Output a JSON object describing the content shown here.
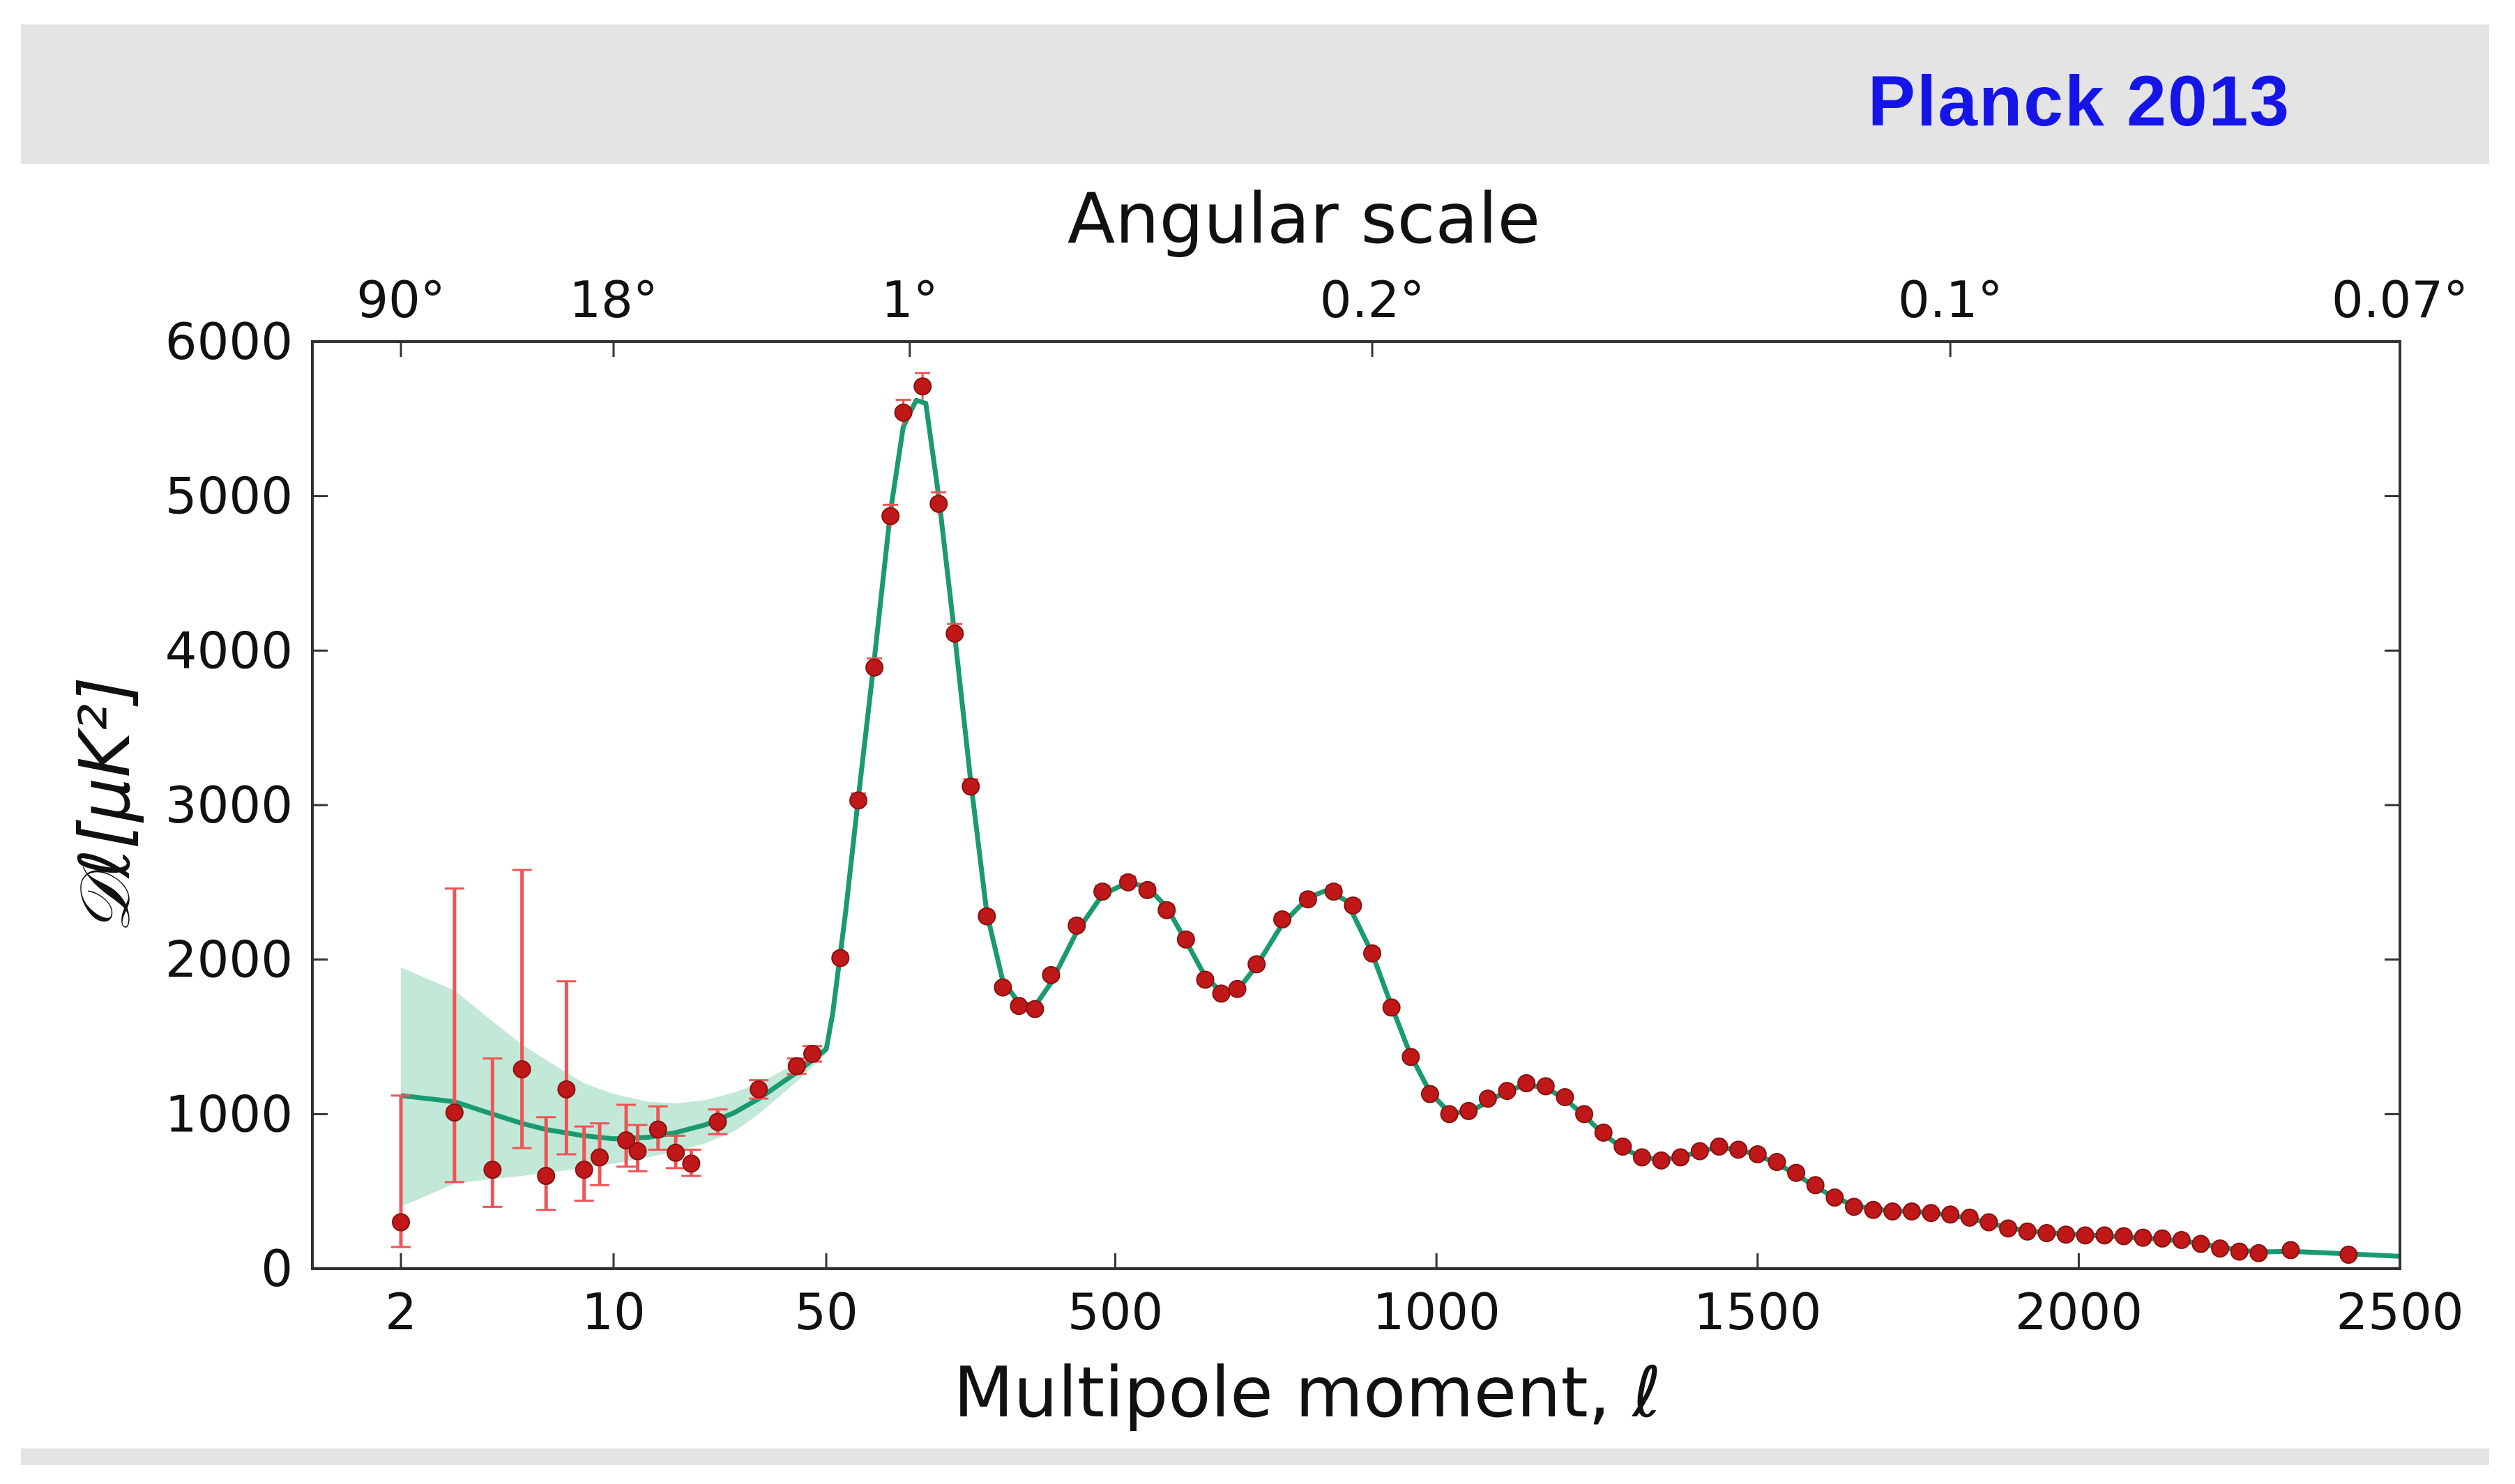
{
  "banner": {
    "title": "Planck 2013"
  },
  "chart_data": {
    "type": "scatter",
    "title": "",
    "xlabel": "Multipole moment, ℓ",
    "ylabel": "𝒟ℓ[μK²]",
    "top_axis_label": "Angular scale",
    "x_scale": "log for 2–50, linear for 50–2500",
    "xlim": [
      2,
      2500
    ],
    "ylim": [
      0,
      6000
    ],
    "x_ticks": [
      "2",
      "10",
      "50",
      "500",
      "1000",
      "1500",
      "2000",
      "2500"
    ],
    "y_ticks": [
      "0",
      "1000",
      "2000",
      "3000",
      "4000",
      "5000",
      "6000"
    ],
    "top_ticks": [
      {
        "label": "90°",
        "ell": 2
      },
      {
        "label": "18°",
        "ell": 10
      },
      {
        "label": "1°",
        "ell": 180
      },
      {
        "label": "0.2°",
        "ell": 900
      },
      {
        "label": "0.1°",
        "ell": 1800
      },
      {
        "label": "0.07°",
        "ell": 2500
      }
    ],
    "grid": false,
    "colors": {
      "points": "#c01818",
      "errorbars": "#ee5555",
      "model": "#1a9a70",
      "band": "#9ad8bc"
    },
    "low_ell_points": [
      {
        "ell": 2,
        "D": 300,
        "err_lo": 160,
        "err_hi": 820
      },
      {
        "ell": 3,
        "D": 1010,
        "err_lo": 450,
        "err_hi": 1450
      },
      {
        "ell": 4,
        "D": 640,
        "err_lo": 240,
        "err_hi": 720
      },
      {
        "ell": 5,
        "D": 1290,
        "err_lo": 510,
        "err_hi": 1290
      },
      {
        "ell": 6,
        "D": 600,
        "err_lo": 220,
        "err_hi": 380
      },
      {
        "ell": 7,
        "D": 1160,
        "err_lo": 420,
        "err_hi": 700
      },
      {
        "ell": 8,
        "D": 640,
        "err_lo": 200,
        "err_hi": 280
      },
      {
        "ell": 9,
        "D": 720,
        "err_lo": 180,
        "err_hi": 220
      },
      {
        "ell": 11,
        "D": 830,
        "err_lo": 170,
        "err_hi": 230
      },
      {
        "ell": 12,
        "D": 760,
        "err_lo": 130,
        "err_hi": 170
      },
      {
        "ell": 14,
        "D": 900,
        "err_lo": 130,
        "err_hi": 150
      },
      {
        "ell": 16,
        "D": 750,
        "err_lo": 100,
        "err_hi": 110
      },
      {
        "ell": 18,
        "D": 680,
        "err_lo": 80,
        "err_hi": 90
      },
      {
        "ell": 22,
        "D": 950,
        "err_lo": 80,
        "err_hi": 80
      },
      {
        "ell": 30,
        "D": 1160,
        "err_lo": 60,
        "err_hi": 60
      },
      {
        "ell": 40,
        "D": 1310,
        "err_lo": 50,
        "err_hi": 50
      },
      {
        "ell": 45,
        "D": 1390,
        "err_lo": 50,
        "err_hi": 50
      }
    ],
    "high_ell_points": [
      [
        72,
        2010
      ],
      [
        100,
        3030
      ],
      [
        125,
        3890
      ],
      [
        150,
        4870
      ],
      [
        170,
        5540
      ],
      [
        200,
        5710
      ],
      [
        225,
        4950
      ],
      [
        250,
        4110
      ],
      [
        275,
        3120
      ],
      [
        300,
        2280
      ],
      [
        325,
        1820
      ],
      [
        350,
        1700
      ],
      [
        375,
        1680
      ],
      [
        400,
        1900
      ],
      [
        440,
        2220
      ],
      [
        480,
        2440
      ],
      [
        520,
        2500
      ],
      [
        550,
        2450
      ],
      [
        580,
        2320
      ],
      [
        610,
        2130
      ],
      [
        640,
        1870
      ],
      [
        665,
        1780
      ],
      [
        690,
        1810
      ],
      [
        720,
        1970
      ],
      [
        760,
        2260
      ],
      [
        800,
        2390
      ],
      [
        840,
        2440
      ],
      [
        870,
        2350
      ],
      [
        900,
        2040
      ],
      [
        930,
        1690
      ],
      [
        960,
        1370
      ],
      [
        990,
        1130
      ],
      [
        1020,
        1000
      ],
      [
        1050,
        1020
      ],
      [
        1080,
        1100
      ],
      [
        1110,
        1150
      ],
      [
        1140,
        1200
      ],
      [
        1170,
        1180
      ],
      [
        1200,
        1110
      ],
      [
        1230,
        1000
      ],
      [
        1260,
        880
      ],
      [
        1290,
        790
      ],
      [
        1320,
        720
      ],
      [
        1350,
        700
      ],
      [
        1380,
        720
      ],
      [
        1410,
        760
      ],
      [
        1440,
        790
      ],
      [
        1470,
        770
      ],
      [
        1500,
        740
      ],
      [
        1530,
        690
      ],
      [
        1560,
        620
      ],
      [
        1590,
        540
      ],
      [
        1620,
        460
      ],
      [
        1650,
        400
      ],
      [
        1680,
        380
      ],
      [
        1710,
        370
      ],
      [
        1740,
        370
      ],
      [
        1770,
        360
      ],
      [
        1800,
        350
      ],
      [
        1830,
        330
      ],
      [
        1860,
        300
      ],
      [
        1890,
        260
      ],
      [
        1920,
        240
      ],
      [
        1950,
        230
      ],
      [
        1980,
        220
      ],
      [
        2010,
        215
      ],
      [
        2040,
        215
      ],
      [
        2070,
        210
      ],
      [
        2100,
        200
      ],
      [
        2130,
        195
      ],
      [
        2160,
        185
      ],
      [
        2190,
        160
      ],
      [
        2220,
        130
      ],
      [
        2250,
        110
      ],
      [
        2280,
        100
      ],
      [
        2330,
        120
      ],
      [
        2420,
        90
      ]
    ],
    "model_curve": [
      [
        2,
        1120
      ],
      [
        3,
        1080
      ],
      [
        4,
        1000
      ],
      [
        5,
        940
      ],
      [
        6,
        900
      ],
      [
        8,
        860
      ],
      [
        10,
        840
      ],
      [
        13,
        850
      ],
      [
        16,
        880
      ],
      [
        20,
        930
      ],
      [
        25,
        1010
      ],
      [
        30,
        1100
      ],
      [
        40,
        1270
      ],
      [
        50,
        1420
      ],
      [
        60,
        1650
      ],
      [
        80,
        2300
      ],
      [
        100,
        3050
      ],
      [
        125,
        3950
      ],
      [
        150,
        4900
      ],
      [
        170,
        5450
      ],
      [
        190,
        5620
      ],
      [
        205,
        5600
      ],
      [
        225,
        5000
      ],
      [
        250,
        4100
      ],
      [
        275,
        3150
      ],
      [
        300,
        2300
      ],
      [
        325,
        1860
      ],
      [
        350,
        1720
      ],
      [
        375,
        1700
      ],
      [
        400,
        1850
      ],
      [
        440,
        2180
      ],
      [
        480,
        2420
      ],
      [
        520,
        2500
      ],
      [
        550,
        2470
      ],
      [
        580,
        2340
      ],
      [
        610,
        2120
      ],
      [
        640,
        1890
      ],
      [
        665,
        1790
      ],
      [
        690,
        1800
      ],
      [
        720,
        1960
      ],
      [
        760,
        2230
      ],
      [
        800,
        2400
      ],
      [
        830,
        2450
      ],
      [
        860,
        2380
      ],
      [
        900,
        2040
      ],
      [
        930,
        1700
      ],
      [
        960,
        1380
      ],
      [
        990,
        1140
      ],
      [
        1020,
        1010
      ],
      [
        1050,
        1010
      ],
      [
        1080,
        1080
      ],
      [
        1110,
        1150
      ],
      [
        1140,
        1190
      ],
      [
        1170,
        1170
      ],
      [
        1200,
        1100
      ],
      [
        1230,
        990
      ],
      [
        1260,
        870
      ],
      [
        1290,
        780
      ],
      [
        1320,
        720
      ],
      [
        1350,
        705
      ],
      [
        1380,
        720
      ],
      [
        1410,
        760
      ],
      [
        1440,
        785
      ],
      [
        1470,
        770
      ],
      [
        1500,
        735
      ],
      [
        1530,
        680
      ],
      [
        1560,
        610
      ],
      [
        1590,
        530
      ],
      [
        1620,
        460
      ],
      [
        1650,
        410
      ],
      [
        1680,
        385
      ],
      [
        1710,
        375
      ],
      [
        1740,
        370
      ],
      [
        1770,
        360
      ],
      [
        1800,
        345
      ],
      [
        1830,
        325
      ],
      [
        1860,
        295
      ],
      [
        1890,
        265
      ],
      [
        1920,
        245
      ],
      [
        1950,
        232
      ],
      [
        1980,
        225
      ],
      [
        2010,
        218
      ],
      [
        2040,
        212
      ],
      [
        2070,
        205
      ],
      [
        2100,
        198
      ],
      [
        2130,
        190
      ],
      [
        2160,
        180
      ],
      [
        2190,
        162
      ],
      [
        2220,
        140
      ],
      [
        2250,
        120
      ],
      [
        2280,
        108
      ],
      [
        2330,
        112
      ],
      [
        2420,
        95
      ],
      [
        2500,
        80
      ]
    ],
    "cosmic_variance_band": [
      [
        2,
        1950,
        400
      ],
      [
        3,
        1800,
        550
      ],
      [
        4,
        1600,
        580
      ],
      [
        5,
        1450,
        600
      ],
      [
        6,
        1350,
        620
      ],
      [
        8,
        1200,
        650
      ],
      [
        10,
        1130,
        680
      ],
      [
        13,
        1080,
        720
      ],
      [
        16,
        1070,
        760
      ],
      [
        20,
        1090,
        810
      ],
      [
        25,
        1140,
        890
      ],
      [
        30,
        1200,
        1000
      ],
      [
        40,
        1330,
        1210
      ],
      [
        50,
        1450,
        1390
      ]
    ]
  }
}
